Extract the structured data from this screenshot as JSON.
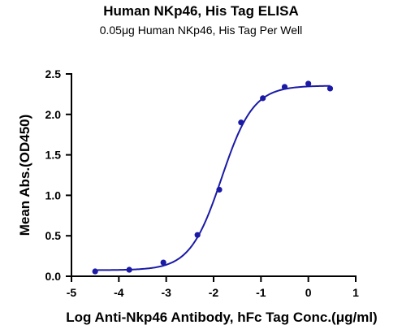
{
  "chart_data": {
    "type": "scatter",
    "title": "Human NKp46, His Tag ELISA",
    "subtitle": "0.05μg Human NKp46, His Tag Per Well",
    "xlabel": "Log Anti-Nkp46 Antibody, hFc Tag Conc.(μg/ml)",
    "ylabel": "Mean Abs.(OD450)",
    "xlim": [
      -5,
      1
    ],
    "ylim": [
      0.0,
      2.5
    ],
    "x_ticks": [
      "-5",
      "-4",
      "-3",
      "-2",
      "-1",
      "0",
      "1"
    ],
    "y_ticks": [
      "0.0",
      "0.5",
      "1.0",
      "1.5",
      "2.0",
      "2.5"
    ],
    "grid": false,
    "colors": {
      "series": "#1a1aa6",
      "axis": "#000000"
    },
    "series": [
      {
        "x": [
          -4.5,
          -3.78,
          -3.06,
          -2.34,
          -1.88,
          -1.42,
          -0.96,
          -0.5,
          0.0,
          0.46
        ],
        "y": [
          0.06,
          0.08,
          0.17,
          0.51,
          1.07,
          1.9,
          2.2,
          2.34,
          2.38,
          2.32
        ],
        "fit": "four-parameter logistic"
      }
    ]
  }
}
